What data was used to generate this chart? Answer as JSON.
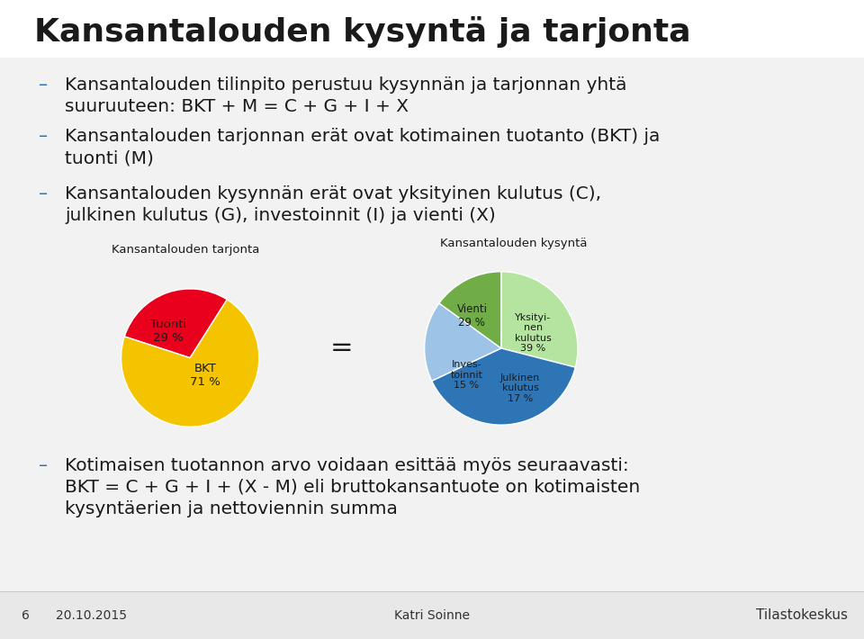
{
  "title": "Kansantalouden kysyntä ja tarjonta",
  "title_fontsize": 26,
  "title_fontweight": "bold",
  "bullet_color": "#2e74b5",
  "bullet_dash": "–",
  "bullets": [
    "Kansantalouden tilinpito perustuu kysynnän ja tarjonnan yhtä\nsuuruuteen: BKT + M = C + G + I + X",
    "Kansantalouden tarjonnan erät ovat kotimainen tuotanto (BKT) ja\ntuonti (M)",
    "Kansantalouden kysynnän erät ovat yksityinen kulutus (C),\njulkinen kulutus (G), investoinnit (I) ja vienti (X)"
  ],
  "bullet4": "Kotimaisen tuotannon arvo voidaan esittää myös seuraavasti:\nBKT = C + G + I + (X - M) eli bruttokansantuote on kotimaisten\nkysyntäerien ja nettoviennin summa",
  "bullet_fontsize": 14.5,
  "pie1_title": "Kansantalouden tarjonta",
  "pie1_values": [
    29,
    71
  ],
  "pie1_labels_text": [
    "Tuonti\n29 %",
    "BKT\n71 %"
  ],
  "pie1_colors": [
    "#e8001c",
    "#f5c400"
  ],
  "pie1_startangle": 162,
  "pie2_title": "Kansantalouden kysyntä",
  "pie2_values": [
    29,
    39,
    17,
    15
  ],
  "pie2_labels_text": [
    "Vienti\n29 %",
    "Yksityi-\nnen\nkulutus\n39 %",
    "Julkinen\nkulutus\n17 %",
    "Inves-\ntoinnit\n15 %"
  ],
  "pie2_colors": [
    "#b5e4a0",
    "#2e75b6",
    "#9dc3e6",
    "#70ad47"
  ],
  "pie2_startangle": 90,
  "footer_left_num": "6",
  "footer_left_date": "20.10.2015",
  "footer_center": "Katri Soinne",
  "footer_right": "Tilastokeskus",
  "footer_fontsize": 10,
  "footer_bg": "#e8e8e8",
  "title_bg": "#ffffff",
  "slide_bg": "#f5f5f5"
}
